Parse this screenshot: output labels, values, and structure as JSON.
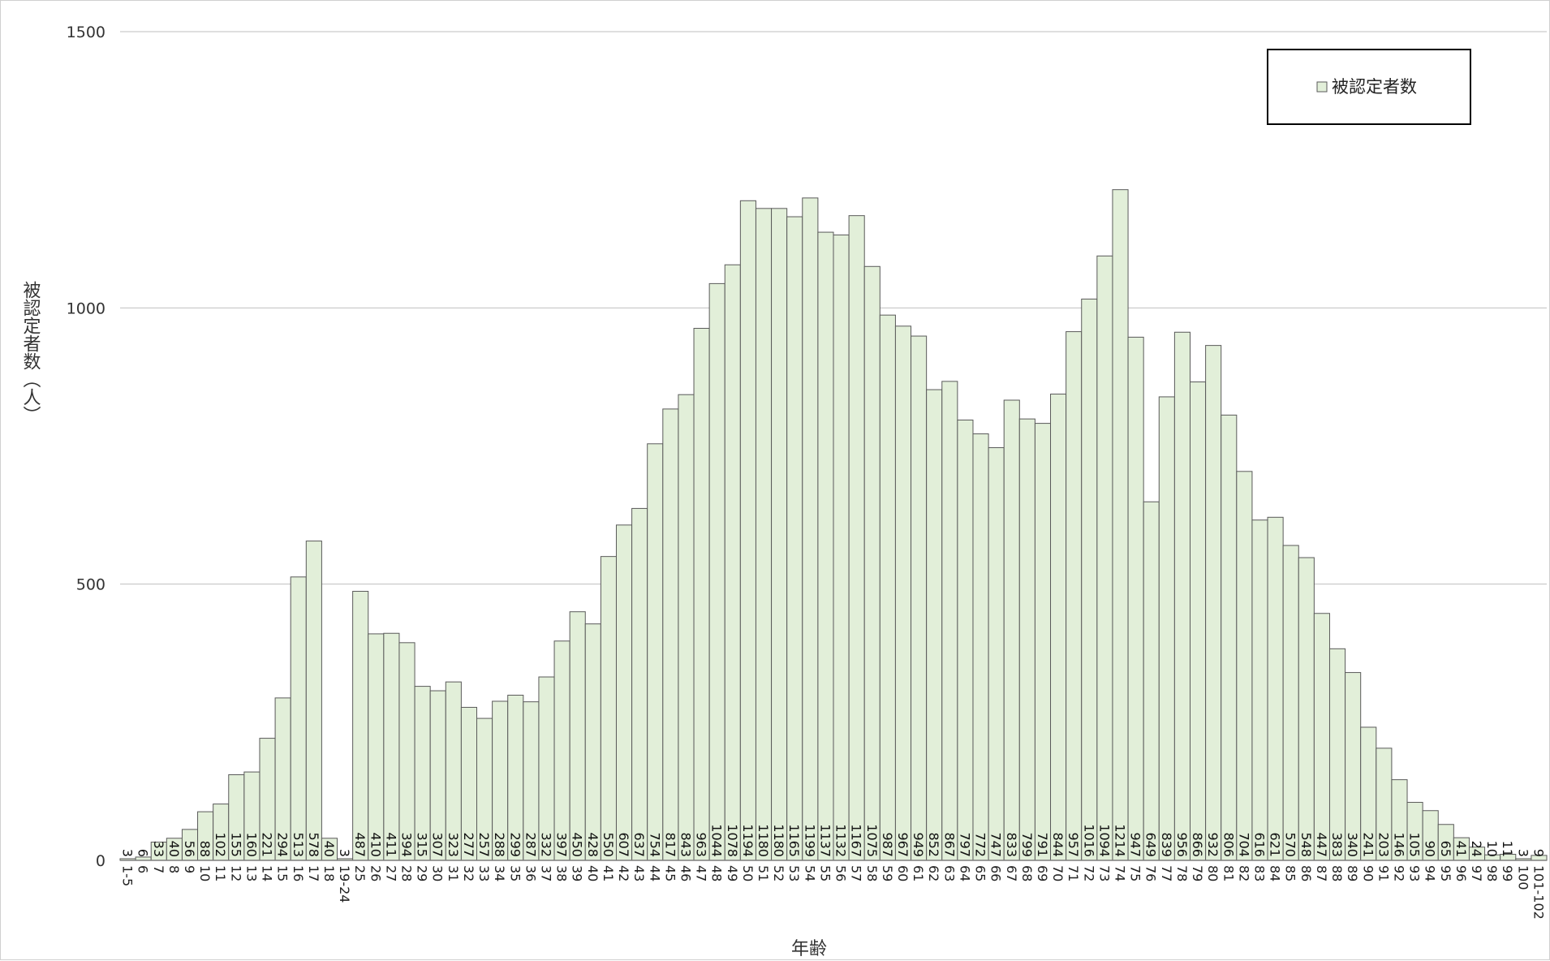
{
  "chart_data": {
    "type": "bar",
    "title": "",
    "xlabel": "年齢",
    "ylabel": "被認定者数（人）",
    "ylim": [
      0,
      1500
    ],
    "yticks": [
      0,
      500,
      1000,
      1500
    ],
    "grid": true,
    "legend_position": "top-right",
    "bar_color": "#e2efd9",
    "bar_edge_color": "#5a5a5a",
    "series": [
      {
        "name": "被認定者数",
        "values": [
          3,
          6,
          33,
          40,
          56,
          88,
          102,
          155,
          160,
          221,
          294,
          513,
          578,
          40,
          3,
          487,
          410,
          411,
          394,
          315,
          307,
          323,
          277,
          257,
          288,
          299,
          287,
          332,
          397,
          450,
          428,
          550,
          607,
          637,
          754,
          817,
          843,
          963,
          1044,
          1078,
          1194,
          1180,
          1180,
          1165,
          1199,
          1137,
          1132,
          1167,
          1075,
          987,
          967,
          949,
          852,
          867,
          797,
          772,
          747,
          833,
          799,
          791,
          844,
          957,
          1016,
          1094,
          1214,
          947,
          649,
          839,
          956,
          866,
          932,
          806,
          704,
          616,
          621,
          570,
          548,
          447,
          383,
          340,
          241,
          203,
          146,
          105,
          90,
          65,
          41,
          24,
          10,
          11,
          3,
          9
        ]
      }
    ],
    "categories": [
      "1-5",
      "6",
      "7",
      "8",
      "9",
      "10",
      "11",
      "12",
      "13",
      "14",
      "15",
      "16",
      "17",
      "18",
      "19-24",
      "25",
      "26",
      "27",
      "28",
      "29",
      "30",
      "31",
      "32",
      "33",
      "34",
      "35",
      "36",
      "37",
      "38",
      "39",
      "40",
      "41",
      "42",
      "43",
      "44",
      "45",
      "46",
      "47",
      "48",
      "49",
      "50",
      "51",
      "52",
      "53",
      "54",
      "55",
      "56",
      "57",
      "58",
      "59",
      "60",
      "61",
      "62",
      "63",
      "64",
      "65",
      "66",
      "67",
      "68",
      "69",
      "70",
      "71",
      "72",
      "73",
      "74",
      "75",
      "76",
      "77",
      "78",
      "79",
      "80",
      "81",
      "82",
      "83",
      "84",
      "85",
      "86",
      "87",
      "88",
      "89",
      "90",
      "91",
      "92",
      "93",
      "94",
      "95",
      "96",
      "97",
      "98",
      "99",
      "100",
      "101-102"
    ]
  }
}
